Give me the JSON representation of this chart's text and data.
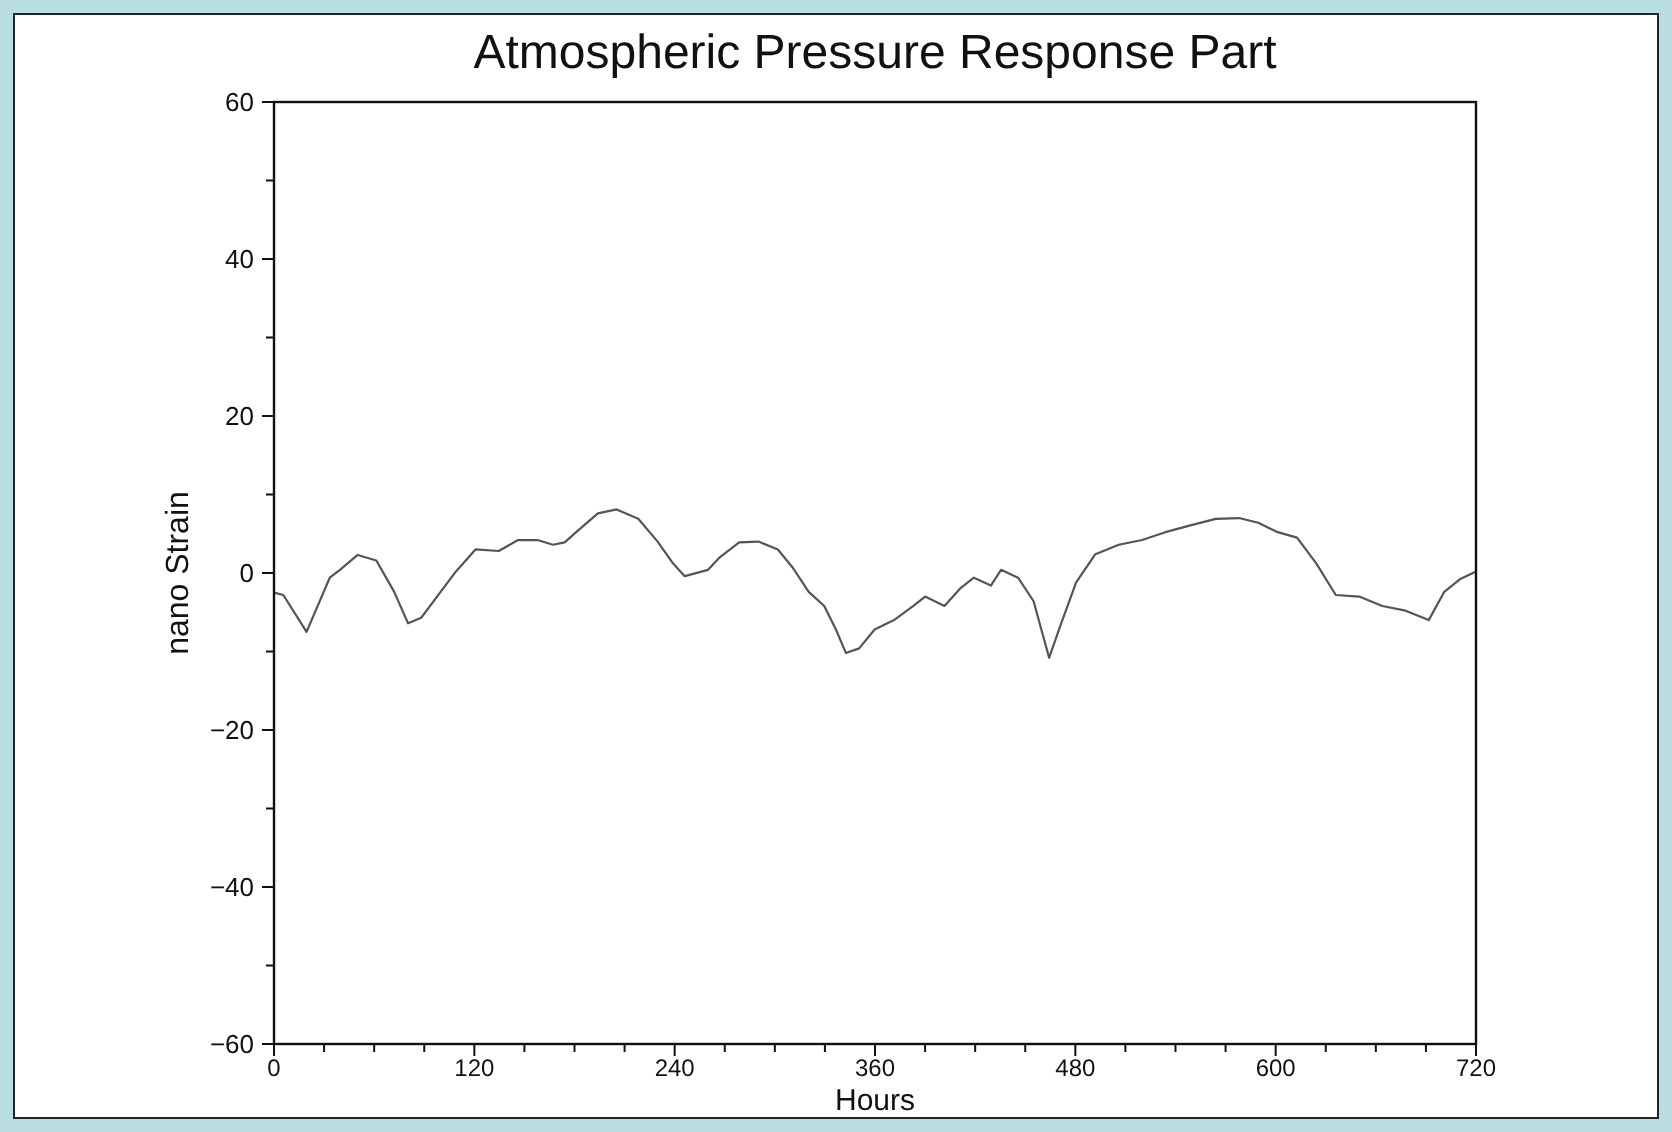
{
  "chart_data": {
    "type": "line",
    "title": "Atmospheric Pressure Response Part",
    "xlabel": "Hours",
    "ylabel": "nano Strain",
    "xlim": [
      0,
      720
    ],
    "ylim": [
      -60,
      60
    ],
    "xticks": [
      0,
      {
        "value": 30,
        "label": null
      },
      {
        "value": 60,
        "label": null
      },
      {
        "value": 90,
        "label": null
      },
      120,
      {
        "value": 150,
        "label": null
      },
      {
        "value": 180,
        "label": null
      },
      {
        "value": 210,
        "label": null
      },
      240,
      {
        "value": 270,
        "label": null
      },
      {
        "value": 300,
        "label": null
      },
      {
        "value": 330,
        "label": null
      },
      360,
      {
        "value": 390,
        "label": null
      },
      {
        "value": 420,
        "label": null
      },
      {
        "value": 450,
        "label": null
      },
      480,
      {
        "value": 510,
        "label": null
      },
      {
        "value": 540,
        "label": null
      },
      {
        "value": 570,
        "label": null
      },
      600,
      {
        "value": 630,
        "label": null
      },
      {
        "value": 660,
        "label": null
      },
      {
        "value": 690,
        "label": null
      },
      720
    ],
    "yticks": [
      -60,
      {
        "value": -50,
        "label": null
      },
      -40,
      {
        "value": -30,
        "label": null
      },
      -20,
      {
        "value": -10,
        "label": null
      },
      0,
      {
        "value": 10,
        "label": null
      },
      20,
      {
        "value": 30,
        "label": null
      },
      40,
      {
        "value": 50,
        "label": null
      },
      60
    ],
    "grid": false,
    "marker": "none",
    "line_style": "solid",
    "series": [
      {
        "color": "#555555",
        "x": [
          0,
          5.6,
          19.5,
          33.4,
          39.5,
          50.1,
          61.3,
          72,
          80.3,
          88.2,
          99.8,
          109,
          120.7,
          134.6,
          146.2,
          157.8,
          167.1,
          174.1,
          181,
          194,
          205.2,
          218.2,
          229.8,
          239.1,
          246,
          260,
          267,
          278.6,
          290.2,
          301.8,
          311,
          320.3,
          329.6,
          336.6,
          342.6,
          350.5,
          359.8,
          371.4,
          383,
          390,
          401.6,
          410.9,
          419.2,
          429.4,
          435.5,
          445.7,
          455,
          464.3,
          471.2,
          480.5,
          492,
          506,
          520,
          533.9,
          547.8,
          564.1,
          578,
          589.6,
          601.2,
          612.8,
          624.4,
          636,
          650,
          663.9,
          677.8,
          691.7,
          701,
          710.3,
          720
        ],
        "values": [
          -2.5,
          -2.8,
          -7.5,
          -0.6,
          0.4,
          2.3,
          1.6,
          -2.4,
          -6.4,
          -5.7,
          -2.4,
          0.2,
          3.0,
          2.8,
          4.2,
          4.2,
          3.6,
          3.9,
          5.2,
          7.6,
          8.1,
          6.9,
          4.0,
          1.2,
          -0.4,
          0.4,
          2.0,
          3.9,
          4.0,
          3.0,
          0.6,
          -2.4,
          -4.2,
          -7.2,
          -10.2,
          -9.6,
          -7.2,
          -6.0,
          -4.2,
          -3.0,
          -4.2,
          -2.0,
          -0.6,
          -1.6,
          0.4,
          -0.6,
          -3.6,
          -10.8,
          -6.6,
          -1.2,
          2.4,
          3.6,
          4.2,
          5.2,
          6.0,
          6.9,
          7.0,
          6.4,
          5.2,
          4.5,
          1.2,
          -2.8,
          -3.0,
          -4.2,
          -4.8,
          -6.0,
          -2.4,
          -0.8,
          0.2
        ]
      }
    ]
  }
}
